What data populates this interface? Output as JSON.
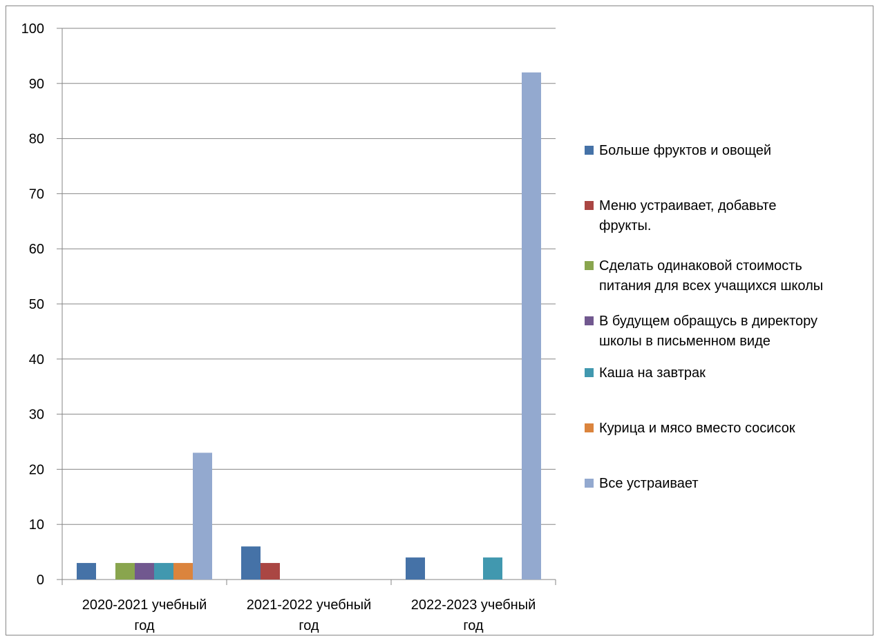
{
  "chart_data": {
    "type": "bar",
    "categories": [
      [
        "2020-2021 учебный",
        "год"
      ],
      [
        "2021-2022 учебный",
        "год"
      ],
      [
        "2022-2023 учебный",
        "год"
      ]
    ],
    "ylim": [
      0,
      100
    ],
    "yticks": [
      0,
      10,
      20,
      30,
      40,
      50,
      60,
      70,
      80,
      90,
      100
    ],
    "grid": true,
    "legend_position": "right",
    "series": [
      {
        "name": [
          "Больше фруктов и овощей"
        ],
        "color": "#4572A7",
        "values": [
          3,
          6,
          4
        ]
      },
      {
        "name": [
          "Меню устраивает, добавьте",
          "фрукты."
        ],
        "color": "#AA4643",
        "values": [
          0,
          3,
          0
        ]
      },
      {
        "name": [
          "Сделать одинаковой стоимость",
          "питания для всех учащихся школы"
        ],
        "color": "#89A54E",
        "values": [
          3,
          0,
          0
        ]
      },
      {
        "name": [
          "В будущем обращусь в директору",
          "школы в письменном виде"
        ],
        "color": "#71588F",
        "values": [
          3,
          0,
          0
        ]
      },
      {
        "name": [
          "Каша на завтрак"
        ],
        "color": "#4198AF",
        "values": [
          3,
          0,
          4
        ]
      },
      {
        "name": [
          "Курица и мясо вместо сосисок"
        ],
        "color": "#DB843D",
        "values": [
          3,
          0,
          0
        ]
      },
      {
        "name": [
          "Все устраивает"
        ],
        "color": "#93A9CF",
        "values": [
          23,
          0,
          92
        ]
      }
    ]
  }
}
